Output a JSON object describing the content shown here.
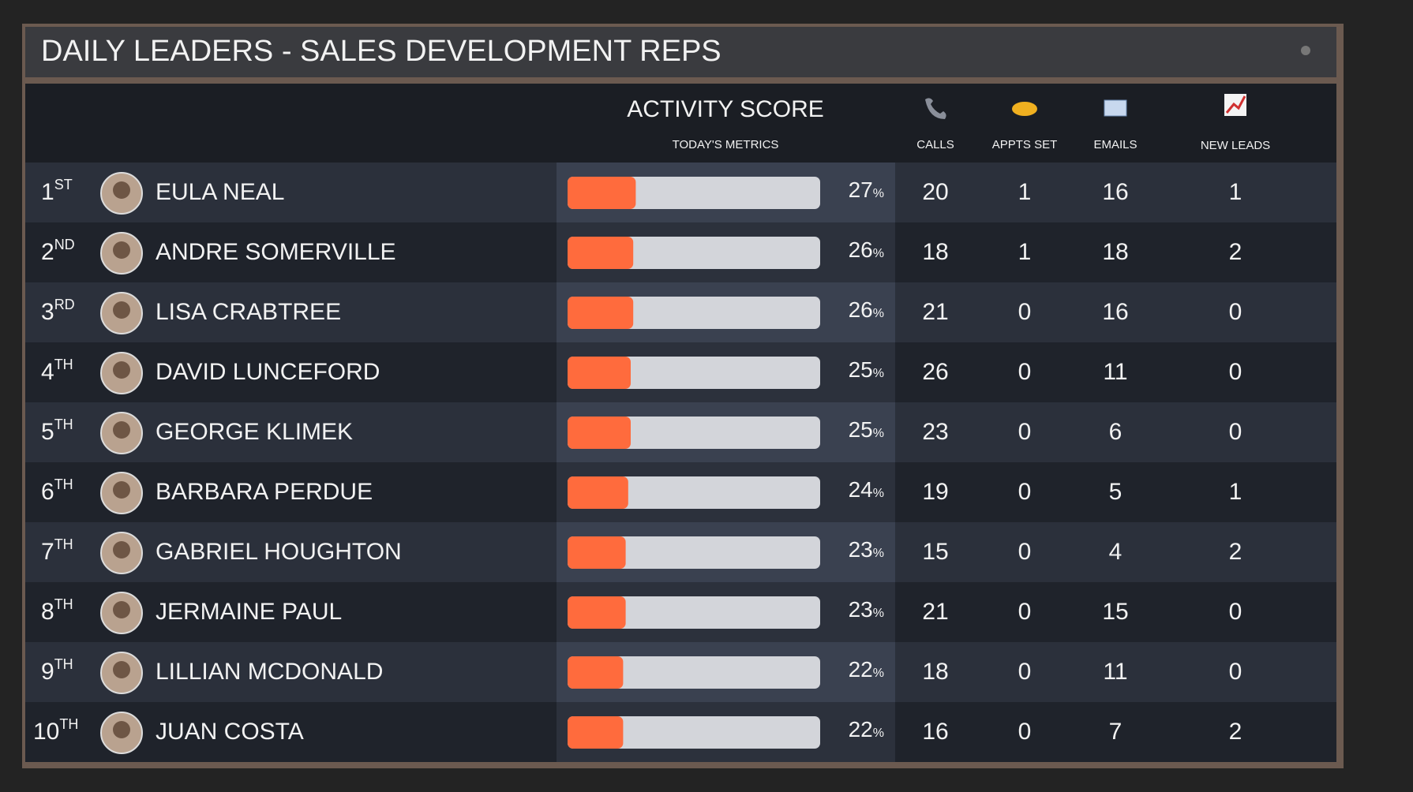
{
  "header": {
    "title": "DAILY LEADERS - SALES DEVELOPMENT REPS"
  },
  "table": {
    "columns": {
      "score": "ACTIVITY SCORE",
      "score_sub": "TODAY'S METRICS",
      "calls": "CALLS",
      "appts": "APPTS SET",
      "emails": "EMAILS",
      "leads": "NEW LEADS"
    },
    "score_unit": "%",
    "xlim": [
      0,
      100
    ],
    "rows": [
      {
        "rank": "1",
        "suffix": "ST",
        "name": "EULA NEAL",
        "score": 27,
        "calls": 20,
        "appts": 1,
        "emails": 16,
        "leads": 1
      },
      {
        "rank": "2",
        "suffix": "ND",
        "name": "ANDRE SOMERVILLE",
        "score": 26,
        "calls": 18,
        "appts": 1,
        "emails": 18,
        "leads": 2
      },
      {
        "rank": "3",
        "suffix": "RD",
        "name": "LISA CRABTREE",
        "score": 26,
        "calls": 21,
        "appts": 0,
        "emails": 16,
        "leads": 0
      },
      {
        "rank": "4",
        "suffix": "TH",
        "name": "DAVID LUNCEFORD",
        "score": 25,
        "calls": 26,
        "appts": 0,
        "emails": 11,
        "leads": 0
      },
      {
        "rank": "5",
        "suffix": "TH",
        "name": "GEORGE KLIMEK",
        "score": 25,
        "calls": 23,
        "appts": 0,
        "emails": 6,
        "leads": 0
      },
      {
        "rank": "6",
        "suffix": "TH",
        "name": "BARBARA PERDUE",
        "score": 24,
        "calls": 19,
        "appts": 0,
        "emails": 5,
        "leads": 1
      },
      {
        "rank": "7",
        "suffix": "TH",
        "name": "GABRIEL HOUGHTON",
        "score": 23,
        "calls": 15,
        "appts": 0,
        "emails": 4,
        "leads": 2
      },
      {
        "rank": "8",
        "suffix": "TH",
        "name": "JERMAINE PAUL",
        "score": 23,
        "calls": 21,
        "appts": 0,
        "emails": 15,
        "leads": 0
      },
      {
        "rank": "9",
        "suffix": "TH",
        "name": "LILLIAN MCDONALD",
        "score": 22,
        "calls": 18,
        "appts": 0,
        "emails": 11,
        "leads": 0
      },
      {
        "rank": "10",
        "suffix": "TH",
        "name": "JUAN COSTA",
        "score": 22,
        "calls": 16,
        "appts": 0,
        "emails": 7,
        "leads": 2
      }
    ]
  }
}
